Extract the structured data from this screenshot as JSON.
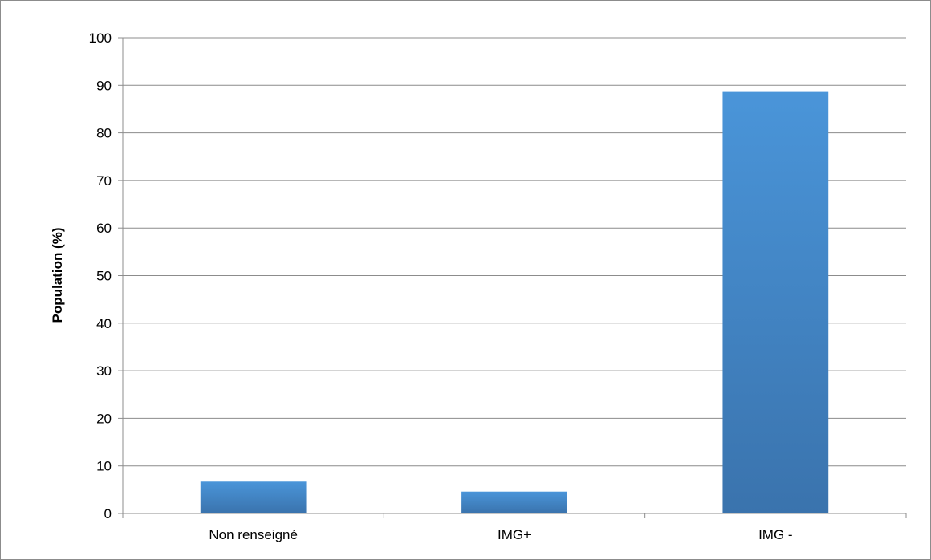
{
  "chart_data": {
    "type": "bar",
    "categories": [
      "Non renseigné",
      "IMG+",
      "IMG -"
    ],
    "values": [
      6.7,
      4.6,
      88.6
    ],
    "title": "",
    "xlabel": "",
    "ylabel": "Population (%)",
    "ylim": [
      0,
      100
    ],
    "yticks": [
      0,
      10,
      20,
      30,
      40,
      50,
      60,
      70,
      80,
      90,
      100
    ],
    "grid": true,
    "legend": "none",
    "colors": {
      "bar_top": "#4a95d9",
      "bar_bottom": "#3a73ad",
      "grid": "#8c8c8c",
      "axis": "#8c8c8c"
    }
  }
}
